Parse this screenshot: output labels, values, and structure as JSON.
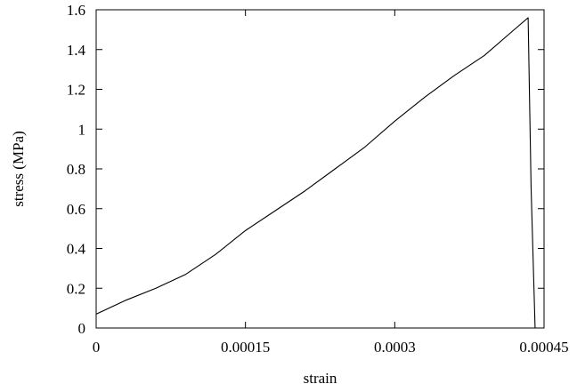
{
  "chart_data": {
    "type": "line",
    "xlabel": "strain",
    "ylabel": "stress (MPa)",
    "xlim": [
      0,
      0.00045
    ],
    "ylim": [
      0,
      1.6
    ],
    "xticks": [
      {
        "value": 0,
        "label": "0"
      },
      {
        "value": 0.00015,
        "label": "0.00015"
      },
      {
        "value": 0.0003,
        "label": "0.0003"
      },
      {
        "value": 0.00045,
        "label": "0.00045"
      }
    ],
    "yticks": [
      {
        "value": 0,
        "label": "0"
      },
      {
        "value": 0.2,
        "label": "0.2"
      },
      {
        "value": 0.4,
        "label": "0.4"
      },
      {
        "value": 0.6,
        "label": "0.6"
      },
      {
        "value": 0.8,
        "label": "0.8"
      },
      {
        "value": 1.0,
        "label": "1"
      },
      {
        "value": 1.2,
        "label": "1.2"
      },
      {
        "value": 1.4,
        "label": "1.4"
      },
      {
        "value": 1.6,
        "label": "1.6"
      }
    ],
    "grid": false,
    "line_color": "#000000",
    "series": [
      {
        "x": [
          0,
          3e-05,
          6e-05,
          9e-05,
          0.00012,
          0.00015,
          0.00018,
          0.00021,
          0.00024,
          0.00027,
          0.0003,
          0.00033,
          0.00036,
          0.00039,
          0.00042,
          0.000434,
          0.000437,
          0.000441
        ],
        "y": [
          0.07,
          0.14,
          0.2,
          0.27,
          0.37,
          0.49,
          0.59,
          0.69,
          0.8,
          0.91,
          1.04,
          1.16,
          1.27,
          1.37,
          1.5,
          1.56,
          0.7,
          0.0
        ]
      }
    ]
  }
}
